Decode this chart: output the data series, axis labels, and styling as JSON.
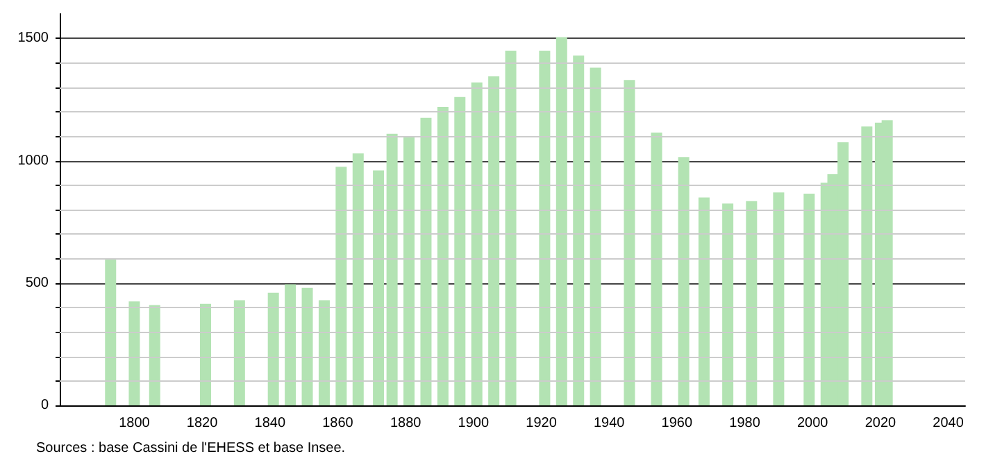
{
  "chart_data": {
    "type": "bar",
    "x": [
      1793,
      1800,
      1806,
      1821,
      1831,
      1841,
      1846,
      1851,
      1856,
      1861,
      1866,
      1872,
      1876,
      1881,
      1886,
      1891,
      1896,
      1901,
      1906,
      1911,
      1921,
      1926,
      1931,
      1936,
      1946,
      1954,
      1962,
      1968,
      1975,
      1982,
      1990,
      1999,
      2004,
      2006,
      2009,
      2016,
      2020,
      2022
    ],
    "series": [
      {
        "color": "#b3e3b3",
        "values": [
          600,
          425,
          410,
          415,
          430,
          460,
          495,
          480,
          430,
          975,
          1030,
          960,
          1110,
          1100,
          1175,
          1220,
          1260,
          1320,
          1345,
          1450,
          1450,
          1505,
          1430,
          1380,
          1330,
          1115,
          1015,
          850,
          825,
          835,
          870,
          865,
          910,
          945,
          1075,
          1140,
          1155,
          1165
        ]
      }
    ],
    "xlim": [
      1778,
      2045
    ],
    "xticks": [
      1800,
      1820,
      1840,
      1860,
      1880,
      1900,
      1920,
      1940,
      1960,
      1980,
      2000,
      2020,
      2040
    ],
    "ylim": [
      0,
      1600
    ],
    "yticks": [
      0,
      {
        "value": 100,
        "label": null
      },
      {
        "value": 200,
        "label": null
      },
      {
        "value": 300,
        "label": null
      },
      {
        "value": 400,
        "label": null
      },
      500,
      {
        "value": 600,
        "label": null
      },
      {
        "value": 700,
        "label": null
      },
      {
        "value": 800,
        "label": null
      },
      {
        "value": 900,
        "label": null
      },
      1000,
      {
        "value": 1100,
        "label": null
      },
      {
        "value": 1200,
        "label": null
      },
      {
        "value": 1300,
        "label": null
      },
      {
        "value": 1400,
        "label": null
      },
      1500
    ],
    "grid": "y",
    "annotations": [
      "Sources : base Cassini de l'EHESS et base Insee."
    ]
  }
}
